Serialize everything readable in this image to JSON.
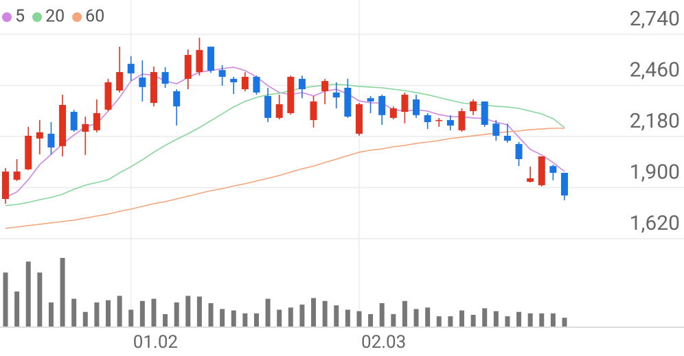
{
  "chart_data": {
    "type": "candlestick",
    "categories": [
      null,
      null,
      null,
      null,
      null,
      null,
      null,
      null,
      null,
      null,
      null,
      "01.02",
      null,
      null,
      null,
      null,
      null,
      null,
      null,
      null,
      null,
      null,
      null,
      null,
      null,
      null,
      null,
      null,
      null,
      null,
      null,
      "02.03",
      null,
      null,
      null,
      null,
      null,
      null,
      null,
      null,
      null,
      null,
      null,
      null,
      null,
      null,
      null,
      null,
      null,
      null
    ],
    "open": [
      1838,
      1943,
      2000,
      2169,
      2195,
      2127,
      2315,
      2206,
      2214,
      2327,
      2432,
      2578,
      2503,
      2364,
      2533,
      2428,
      2496,
      2533,
      2672,
      2544,
      2496,
      2439,
      2507,
      2402,
      2282,
      2308,
      2496,
      2270,
      2428,
      2421,
      2447,
      2195,
      2390,
      2402,
      2282,
      2315,
      2383,
      2297,
      2267,
      2270,
      2214,
      2319,
      2372,
      2251,
      2184,
      2139,
      1932,
      1913,
      2018,
      1981
    ],
    "high": [
      2007,
      2056,
      2233,
      2270,
      2259,
      2409,
      2326,
      2289,
      2383,
      2496,
      2672,
      2620,
      2597,
      2563,
      2560,
      2439,
      2657,
      2721,
      2672,
      2571,
      2507,
      2533,
      2514,
      2447,
      2409,
      2514,
      2514,
      2402,
      2496,
      2477,
      2496,
      2364,
      2402,
      2409,
      2345,
      2421,
      2409,
      2308,
      2282,
      2297,
      2334,
      2383,
      2372,
      2270,
      2251,
      2150,
      2015,
      2071,
      2026,
      1981
    ],
    "low": [
      1812,
      1936,
      1996,
      2082,
      2082,
      2071,
      2206,
      2079,
      2203,
      2319,
      2421,
      2484,
      2372,
      2345,
      2447,
      2240,
      2439,
      2514,
      2529,
      2458,
      2413,
      2428,
      2409,
      2259,
      2274,
      2300,
      2390,
      2229,
      2357,
      2334,
      2282,
      2184,
      2308,
      2244,
      2274,
      2252,
      2282,
      2221,
      2233,
      2214,
      2206,
      2297,
      2233,
      2157,
      2146,
      2018,
      1928,
      1906,
      1940,
      1831
    ],
    "close": [
      1988,
      1988,
      2184,
      2203,
      2120,
      2353,
      2214,
      2248,
      2308,
      2477,
      2533,
      2526,
      2451,
      2533,
      2469,
      2345,
      2627,
      2654,
      2541,
      2507,
      2477,
      2507,
      2421,
      2282,
      2357,
      2507,
      2439,
      2372,
      2484,
      2394,
      2289,
      2357,
      2372,
      2297,
      2334,
      2409,
      2297,
      2259,
      2270,
      2240,
      2319,
      2372,
      2244,
      2184,
      2157,
      2056,
      1951,
      2071,
      1981,
      1857
    ],
    "up_color": "#e0321e",
    "down_color": "#1b74e4",
    "ma": [
      {
        "name": "5",
        "color": "#cf85e3",
        "values": [
          1846,
          1876,
          1943,
          2026,
          2082,
          2139,
          2188,
          2233,
          2251,
          2319,
          2394,
          2484,
          2522,
          2515,
          2484,
          2469,
          2503,
          2533,
          2541,
          2552,
          2560,
          2541,
          2507,
          2458,
          2421,
          2409,
          2421,
          2402,
          2428,
          2439,
          2413,
          2375,
          2364,
          2364,
          2327,
          2319,
          2327,
          2319,
          2300,
          2289,
          2289,
          2282,
          2278,
          2259,
          2244,
          2176,
          2109,
          2079,
          2037,
          1988
        ]
      },
      {
        "name": "20",
        "color": "#86d69a",
        "values": [
          1801,
          1808,
          1819,
          1834,
          1846,
          1864,
          1891,
          1913,
          1928,
          1943,
          1981,
          2015,
          2052,
          2094,
          2131,
          2165,
          2195,
          2229,
          2267,
          2304,
          2342,
          2372,
          2394,
          2409,
          2417,
          2432,
          2447,
          2454,
          2462,
          2466,
          2462,
          2454,
          2451,
          2447,
          2439,
          2432,
          2421,
          2409,
          2394,
          2379,
          2364,
          2357,
          2353,
          2345,
          2342,
          2334,
          2319,
          2304,
          2278,
          2229
        ]
      },
      {
        "name": "60",
        "color": "#f4a57c",
        "values": [
          1677,
          1684,
          1692,
          1699,
          1707,
          1714,
          1722,
          1733,
          1744,
          1755,
          1770,
          1782,
          1797,
          1812,
          1823,
          1838,
          1853,
          1868,
          1883,
          1894,
          1909,
          1921,
          1936,
          1951,
          1966,
          1985,
          2003,
          2018,
          2037,
          2056,
          2075,
          2094,
          2105,
          2112,
          2124,
          2131,
          2142,
          2150,
          2158,
          2169,
          2176,
          2184,
          2191,
          2199,
          2206,
          2210,
          2218,
          2221,
          2225,
          2225
        ]
      }
    ],
    "volume": {
      "color": "#777777",
      "values": [
        74,
        48,
        89,
        74,
        33,
        94,
        38,
        20,
        33,
        36,
        42,
        23,
        35,
        38,
        17,
        33,
        42,
        41,
        32,
        24,
        22,
        18,
        18,
        38,
        23,
        26,
        30,
        39,
        35,
        29,
        23,
        21,
        17,
        32,
        17,
        35,
        24,
        26,
        14,
        14,
        22,
        16,
        25,
        21,
        14,
        20,
        18,
        18,
        18,
        12
      ]
    },
    "ylim": [
      1620,
      2740
    ],
    "yticks": [
      {
        "value": 2740,
        "label": "2,740"
      },
      {
        "value": 2460,
        "label": "2,460"
      },
      {
        "value": 2180,
        "label": "2,180"
      },
      {
        "value": 1900,
        "label": "1,900"
      },
      {
        "value": 1620,
        "label": "1,620"
      }
    ],
    "grid": true
  }
}
